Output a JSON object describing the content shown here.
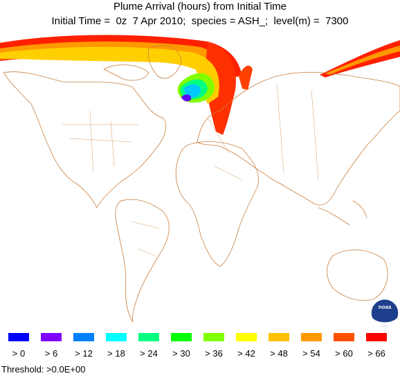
{
  "header": {
    "title": "Plume Arrival (hours) from Initial Time",
    "subtitle": "Initial Time =  0z  7 Apr 2010;  species = ASH_;  level(m) =  7300"
  },
  "logo": {
    "text": "noaa"
  },
  "legend": [
    {
      "label": "> 0",
      "color": "#0000ff"
    },
    {
      "label": "> 6",
      "color": "#8000ff"
    },
    {
      "label": "> 12",
      "color": "#0080ff"
    },
    {
      "label": "> 18",
      "color": "#00ffff"
    },
    {
      "label": "> 24",
      "color": "#00ff80"
    },
    {
      "label": "> 30",
      "color": "#00ff00"
    },
    {
      "label": "> 36",
      "color": "#80ff00"
    },
    {
      "label": "> 42",
      "color": "#ffff00"
    },
    {
      "label": "> 48",
      "color": "#ffc000"
    },
    {
      "label": "> 54",
      "color": "#ff9900"
    },
    {
      "label": "> 60",
      "color": "#ff5000"
    },
    {
      "label": "> 66",
      "color": "#ff0000"
    }
  ],
  "footer": {
    "threshold": "Threshold: >0.0E+00"
  }
}
